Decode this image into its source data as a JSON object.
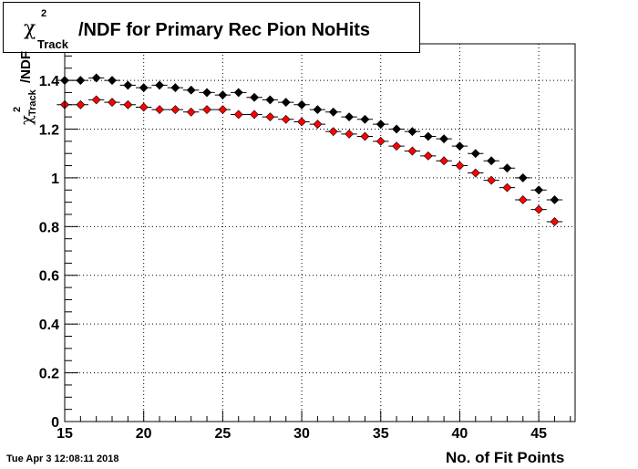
{
  "title": {
    "symbol": "χ",
    "sup": "2",
    "sub": "Track",
    "rest": "/NDF for Primary Rec Pion NoHits"
  },
  "y_title": {
    "symbol": "χ",
    "sup": "2",
    "sub": "Track",
    "rest": "/NDF"
  },
  "x_title": "No. of Fit Points",
  "timestamp": "Tue Apr  3 12:08:11 2018",
  "chart_data": {
    "type": "scatter",
    "xlim": [
      15,
      47.3
    ],
    "ylim": [
      0,
      1.55
    ],
    "x_ticks": [
      15,
      20,
      25,
      30,
      35,
      40,
      45
    ],
    "y_ticks": [
      0,
      0.2,
      0.4,
      0.6,
      0.8,
      1,
      1.2,
      1.4
    ],
    "x_tick_labels": [
      "15",
      "20",
      "25",
      "30",
      "35",
      "40",
      "45"
    ],
    "y_tick_labels": [
      "0",
      "0.2",
      "0.4",
      "0.6",
      "0.8",
      "1",
      "1.2",
      "1.4"
    ],
    "grid": true,
    "series": [
      {
        "color": "#000000",
        "marker": "diamond",
        "x": [
          15,
          16,
          17,
          18,
          19,
          20,
          21,
          22,
          23,
          24,
          25,
          26,
          27,
          28,
          29,
          30,
          31,
          32,
          33,
          34,
          35,
          36,
          37,
          38,
          39,
          40,
          41,
          42,
          43,
          44,
          45,
          46
        ],
        "y": [
          1.4,
          1.4,
          1.41,
          1.4,
          1.38,
          1.37,
          1.38,
          1.37,
          1.36,
          1.35,
          1.34,
          1.35,
          1.33,
          1.32,
          1.31,
          1.3,
          1.28,
          1.27,
          1.25,
          1.24,
          1.22,
          1.2,
          1.19,
          1.17,
          1.16,
          1.13,
          1.1,
          1.07,
          1.04,
          1.0,
          0.95,
          0.91
        ]
      },
      {
        "color": "#ff0000",
        "marker": "diamond",
        "x": [
          15,
          16,
          17,
          18,
          19,
          20,
          21,
          22,
          23,
          24,
          25,
          26,
          27,
          28,
          29,
          30,
          31,
          32,
          33,
          34,
          35,
          36,
          37,
          38,
          39,
          40,
          41,
          42,
          43,
          44,
          45,
          46
        ],
        "y": [
          1.3,
          1.3,
          1.32,
          1.31,
          1.3,
          1.29,
          1.28,
          1.28,
          1.27,
          1.28,
          1.28,
          1.26,
          1.26,
          1.25,
          1.24,
          1.23,
          1.22,
          1.19,
          1.18,
          1.17,
          1.15,
          1.13,
          1.11,
          1.09,
          1.07,
          1.05,
          1.02,
          0.99,
          0.96,
          0.91,
          0.87,
          0.82
        ]
      }
    ]
  }
}
